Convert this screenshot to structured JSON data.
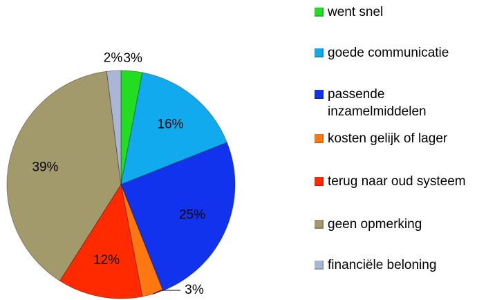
{
  "chart_data": {
    "type": "pie",
    "categories": [
      "went snel",
      "goede communicatie",
      "passende inzamelmiddelen",
      "kosten gelijk of lager",
      "terug naar oud systeem",
      "geen opmerking",
      "financiële beloning"
    ],
    "values": [
      3,
      16,
      25,
      3,
      12,
      39,
      2
    ],
    "value_labels": [
      "3%",
      "16%",
      "25%",
      "3%",
      "12%",
      "39%",
      "2%"
    ],
    "colors": [
      "#22dd22",
      "#11aaee",
      "#1133ee",
      "#ff7711",
      "#ff2a00",
      "#a39a6c",
      "#a9b6d6"
    ],
    "legend": "right"
  }
}
